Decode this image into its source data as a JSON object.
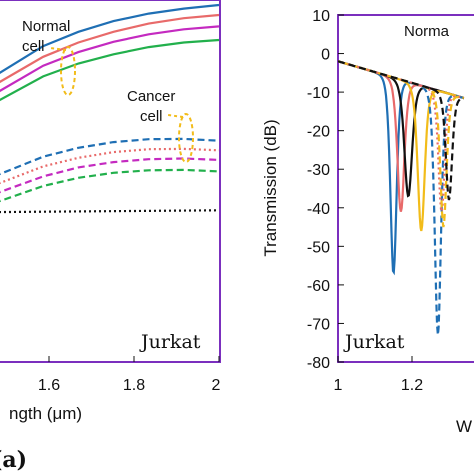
{
  "figure_label": "(a)",
  "chart_data": [
    {
      "type": "line",
      "panel_label": "Jurkat",
      "xlabel": "ngth (μm)",
      "ylabel": "",
      "xlim": [
        1.36,
        2.0
      ],
      "ylim": [
        0,
        1
      ],
      "xticks": [
        "1.6",
        "1.8",
        "2"
      ],
      "grid": false,
      "annotations": [
        "Normal",
        "cell",
        "Cancer",
        "cell"
      ],
      "series": [
        {
          "group": "normal",
          "color": "#1f6fb4",
          "dash": "solid",
          "x": [
            1.36,
            1.5,
            1.6,
            1.7,
            1.8,
            1.9,
            2.0
          ],
          "y": [
            0.8,
            0.885,
            0.925,
            0.955,
            0.976,
            0.99,
            1.0
          ]
        },
        {
          "group": "normal",
          "color": "#e86a6a",
          "dash": "solid",
          "x": [
            1.36,
            1.5,
            1.6,
            1.7,
            1.8,
            1.9,
            2.0
          ],
          "y": [
            0.775,
            0.855,
            0.895,
            0.925,
            0.948,
            0.963,
            0.972
          ]
        },
        {
          "group": "normal",
          "color": "#c42ac0",
          "dash": "solid",
          "x": [
            1.36,
            1.5,
            1.6,
            1.7,
            1.8,
            1.9,
            2.0
          ],
          "y": [
            0.75,
            0.83,
            0.868,
            0.897,
            0.918,
            0.932,
            0.94
          ]
        },
        {
          "group": "normal",
          "color": "#22b04c",
          "dash": "solid",
          "x": [
            1.36,
            1.5,
            1.6,
            1.7,
            1.8,
            1.9,
            2.0
          ],
          "y": [
            0.725,
            0.8,
            0.836,
            0.862,
            0.882,
            0.895,
            0.902
          ]
        },
        {
          "group": "cancer",
          "color": "#1f6fb4",
          "dash": "dashed",
          "x": [
            1.36,
            1.5,
            1.6,
            1.7,
            1.8,
            1.9,
            2.0
          ],
          "y": [
            0.52,
            0.575,
            0.6,
            0.616,
            0.624,
            0.625,
            0.62
          ]
        },
        {
          "group": "cancer",
          "color": "#e86a6a",
          "dash": "dotted",
          "x": [
            1.36,
            1.5,
            1.6,
            1.7,
            1.8,
            1.9,
            2.0
          ],
          "y": [
            0.495,
            0.548,
            0.572,
            0.588,
            0.596,
            0.597,
            0.593
          ]
        },
        {
          "group": "cancer",
          "color": "#c42ac0",
          "dash": "dashed",
          "x": [
            1.36,
            1.5,
            1.6,
            1.7,
            1.8,
            1.9,
            2.0
          ],
          "y": [
            0.47,
            0.52,
            0.545,
            0.56,
            0.568,
            0.57,
            0.566
          ]
        },
        {
          "group": "cancer",
          "color": "#22b04c",
          "dash": "dashed",
          "x": [
            1.36,
            1.5,
            1.6,
            1.7,
            1.8,
            1.9,
            2.0
          ],
          "y": [
            0.445,
            0.493,
            0.516,
            0.53,
            0.537,
            0.538,
            0.534
          ]
        },
        {
          "group": "baseline",
          "color": "#111111",
          "dash": "dotted",
          "x": [
            1.36,
            2.0
          ],
          "y": [
            0.42,
            0.425
          ]
        }
      ]
    },
    {
      "type": "line",
      "panel_label": "Jurkat",
      "xlabel": "W",
      "ylabel": "Transmission (dB)",
      "xlim": [
        1.0,
        1.3
      ],
      "ylim": [
        -80,
        10
      ],
      "xticks": [
        1.0,
        1.2
      ],
      "yticks": [
        10,
        0,
        -10,
        -20,
        -30,
        -40,
        -50,
        -60,
        -70,
        -80
      ],
      "grid": false,
      "annotations": [
        "Norma"
      ],
      "series": [
        {
          "color": "#1f6fb4",
          "dash": "solid",
          "center": 1.15,
          "min": -57,
          "width": 0.04
        },
        {
          "color": "#e86a6a",
          "dash": "solid",
          "center": 1.17,
          "min": -41,
          "width": 0.045
        },
        {
          "color": "#111111",
          "dash": "solid",
          "center": 1.19,
          "min": -37,
          "width": 0.05
        },
        {
          "color": "#f2bc1a",
          "dash": "solid",
          "center": 1.225,
          "min": -46,
          "width": 0.045
        },
        {
          "color": "#1f6fb4",
          "dash": "dashed",
          "center": 1.27,
          "min": -73,
          "width": 0.04
        },
        {
          "color": "#e86a6a",
          "dash": "dotted",
          "center": 1.28,
          "min": -41,
          "width": 0.04
        },
        {
          "color": "#f2bc1a",
          "dash": "dashed",
          "center": 1.285,
          "min": -45,
          "width": 0.04
        },
        {
          "color": "#111111",
          "dash": "dashed",
          "center": 1.3,
          "min": -38,
          "width": 0.04
        }
      ]
    }
  ]
}
